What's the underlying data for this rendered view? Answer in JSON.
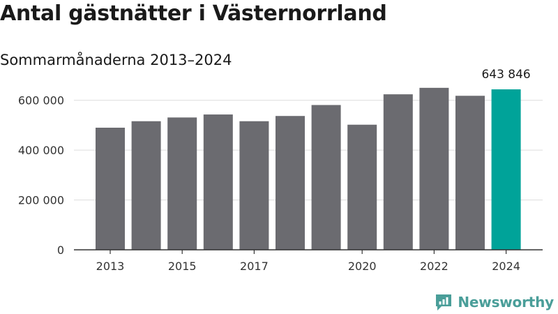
{
  "title": "Antal gästnätter i Västernorrland",
  "subtitle": "Sommarmånaderna 2013–2024",
  "brand": {
    "name": "Newsworthy",
    "icon": "newsworthy-logo-icon"
  },
  "colors": {
    "bar": "#6b6b70",
    "highlight": "#00a399",
    "axis": "#333333",
    "grid": "#dddddd"
  },
  "chart_data": {
    "type": "bar",
    "title": "Antal gästnätter i Västernorrland",
    "subtitle": "Sommarmånaderna 2013–2024",
    "categories": [
      "2013",
      "2014",
      "2015",
      "2016",
      "2017",
      "2018",
      "2019",
      "2020",
      "2021",
      "2022",
      "2023",
      "2024"
    ],
    "values": [
      490000,
      516000,
      531000,
      543000,
      516000,
      537000,
      581000,
      502000,
      624000,
      650000,
      618000,
      643846
    ],
    "x_tick_labels": [
      "2013",
      "",
      "2015",
      "",
      "2017",
      "",
      "",
      "2020",
      "",
      "2022",
      "",
      "2024"
    ],
    "y_ticks": [
      0,
      200000,
      400000,
      600000
    ],
    "y_tick_labels": [
      "0",
      "200 000",
      "400 000",
      "600 000"
    ],
    "ylim": [
      0,
      700000
    ],
    "highlight_index": 11,
    "highlight_label": "643 846",
    "grid": true,
    "legend": "none"
  }
}
